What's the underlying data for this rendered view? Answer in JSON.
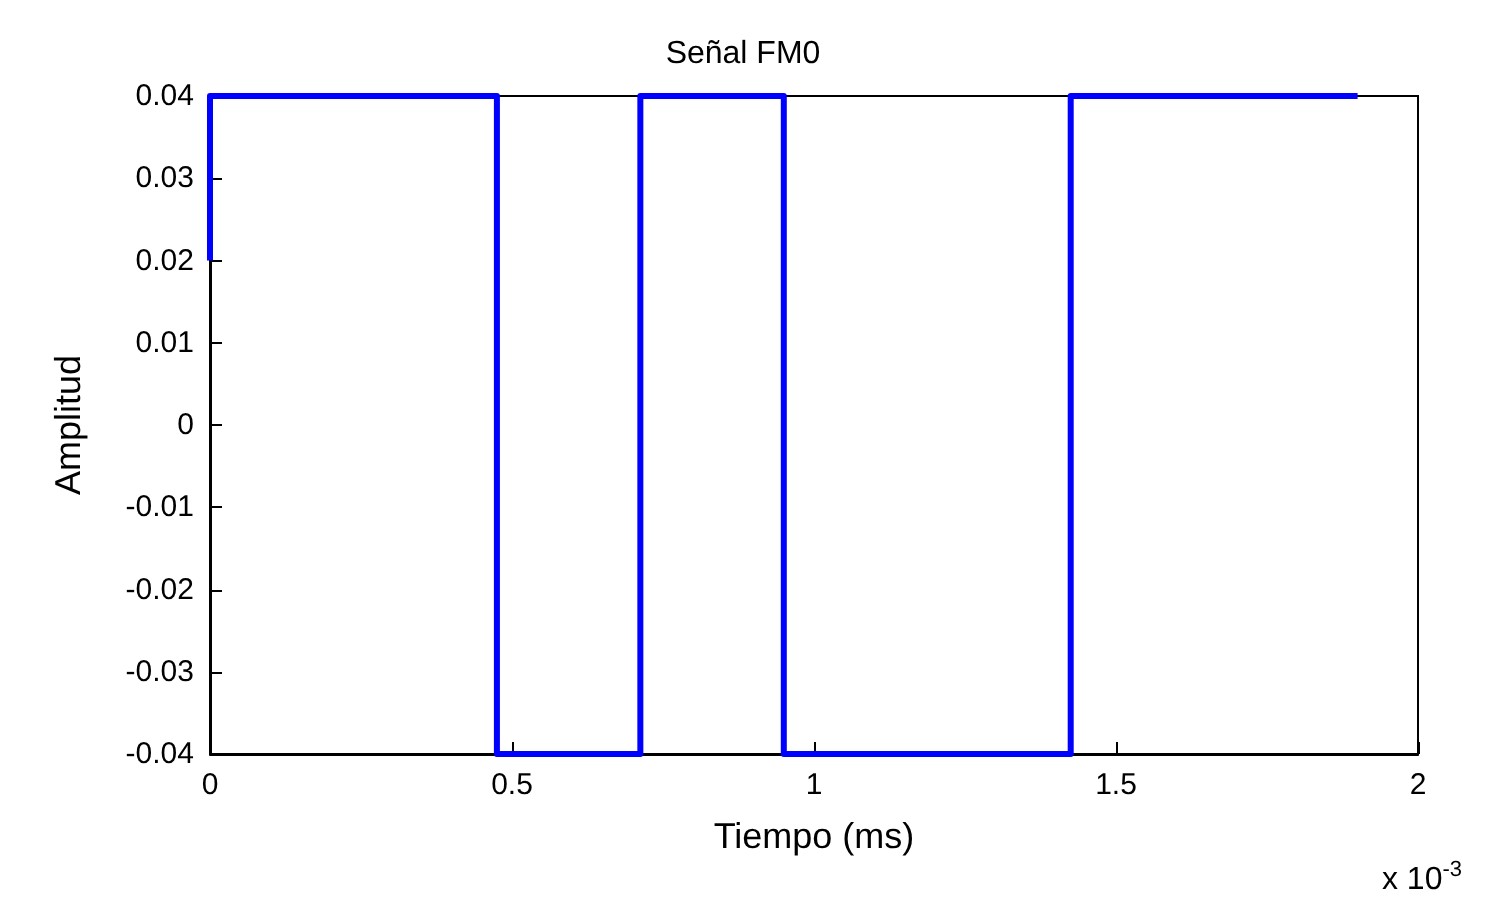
{
  "chart_data": {
    "type": "step",
    "title": "Señal FM0",
    "xlabel": "Tiempo (ms)",
    "ylabel": "Amplitud",
    "annotations": [
      "x 10$^{-3}$"
    ],
    "series": [
      {
        "color": "#0000ff",
        "x": [
          0,
          0,
          0.475,
          0.7125,
          0.95,
          1.425,
          1.9
        ],
        "values": [
          0.02,
          0.04,
          -0.04,
          0.04,
          -0.04,
          0.04,
          0.04
        ]
      }
    ],
    "xlim": [
      0,
      2
    ],
    "xticks": [
      0,
      0.5,
      1,
      1.5,
      2
    ],
    "ylim": [
      -0.04,
      0.04
    ],
    "yticks": [
      -0.04,
      -0.03,
      -0.02,
      -0.01,
      0,
      0.01,
      0.02,
      0.03,
      0.04
    ],
    "grid": false
  }
}
